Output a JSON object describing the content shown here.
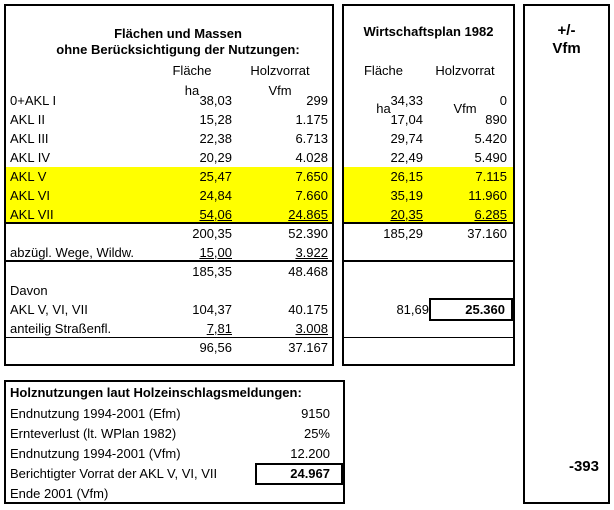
{
  "left_table": {
    "title1": "Flächen und Massen",
    "title2": "ohne Berücksichtigung der Nutzungen:",
    "col_flaeche": "Fläche",
    "col_flaeche_unit": "ha",
    "col_holz": "Holzvorrat",
    "col_holz_unit": "Vfm",
    "rows": [
      {
        "label": "0+AKL I",
        "flaeche": "38,03",
        "holz": "299"
      },
      {
        "label": "AKL II",
        "flaeche": "15,28",
        "holz": "1.175"
      },
      {
        "label": "AKL III",
        "flaeche": "22,38",
        "holz": "6.713"
      },
      {
        "label": "AKL IV",
        "flaeche": "20,29",
        "holz": "4.028"
      },
      {
        "label": "AKL V",
        "flaeche": "25,47",
        "holz": "7.650"
      },
      {
        "label": "AKL VI",
        "flaeche": "24,84",
        "holz": "7.660"
      },
      {
        "label": "AKL VII",
        "flaeche": "54,06",
        "holz": "24.865"
      },
      {
        "label": "",
        "flaeche": "200,35",
        "holz": "52.390"
      },
      {
        "label": "abzügl. Wege, Wildw.",
        "flaeche": "15,00",
        "holz": "3.922"
      },
      {
        "label": "",
        "flaeche": "185,35",
        "holz": "48.468"
      },
      {
        "label": "Davon",
        "flaeche": "",
        "holz": ""
      },
      {
        "label": "AKL V, VI, VII",
        "flaeche": "104,37",
        "holz": "40.175"
      },
      {
        "label": "anteilig Straßenfl.",
        "flaeche": "7,81",
        "holz": "3.008"
      },
      {
        "label": "",
        "flaeche": "96,56",
        "holz": "37.167"
      }
    ]
  },
  "plan_table": {
    "title": "Wirtschaftsplan 1982",
    "col_flaeche": "Fläche",
    "col_flaeche_unit": "ha",
    "col_holz": "Holzvorrat",
    "col_holz_unit": "Vfm",
    "rows": [
      {
        "flaeche": "34,33",
        "holz": "0"
      },
      {
        "flaeche": "17,04",
        "holz": "890"
      },
      {
        "flaeche": "29,74",
        "holz": "5.420"
      },
      {
        "flaeche": "22,49",
        "holz": "5.490"
      },
      {
        "flaeche": "26,15",
        "holz": "7.115"
      },
      {
        "flaeche": "35,19",
        "holz": "11.960"
      },
      {
        "flaeche": "20,35",
        "holz": "6.285"
      },
      {
        "flaeche": "185,29",
        "holz": "37.160"
      },
      {
        "flaeche": "",
        "holz": ""
      },
      {
        "flaeche": "",
        "holz": ""
      },
      {
        "flaeche": "",
        "holz": ""
      },
      {
        "flaeche": "81,69",
        "holz": "25.360"
      },
      {
        "flaeche": "",
        "holz": ""
      },
      {
        "flaeche": "",
        "holz": ""
      }
    ]
  },
  "diff_box": {
    "title1": "+/-",
    "title2": "Vfm",
    "value": "-393"
  },
  "harvest_table": {
    "title": "Holznutzungen laut Holzeinschlagsmeldungen:",
    "rows": [
      {
        "label": "Endnutzung 1994-2001 (Efm)",
        "value": "9150"
      },
      {
        "label": "Ernteverlust (lt. WPlan 1982)",
        "value": "25%"
      },
      {
        "label": "Endnutzung 1994-2001 (Vfm)",
        "value": "12.200"
      },
      {
        "label": "Berichtigter Vorrat der AKL V, VI, VII",
        "value": "24.967"
      },
      {
        "label": "Ende 2001 (Vfm)",
        "value": ""
      }
    ]
  },
  "colors": {
    "highlight": "#FFFF00",
    "border": "#000000"
  }
}
